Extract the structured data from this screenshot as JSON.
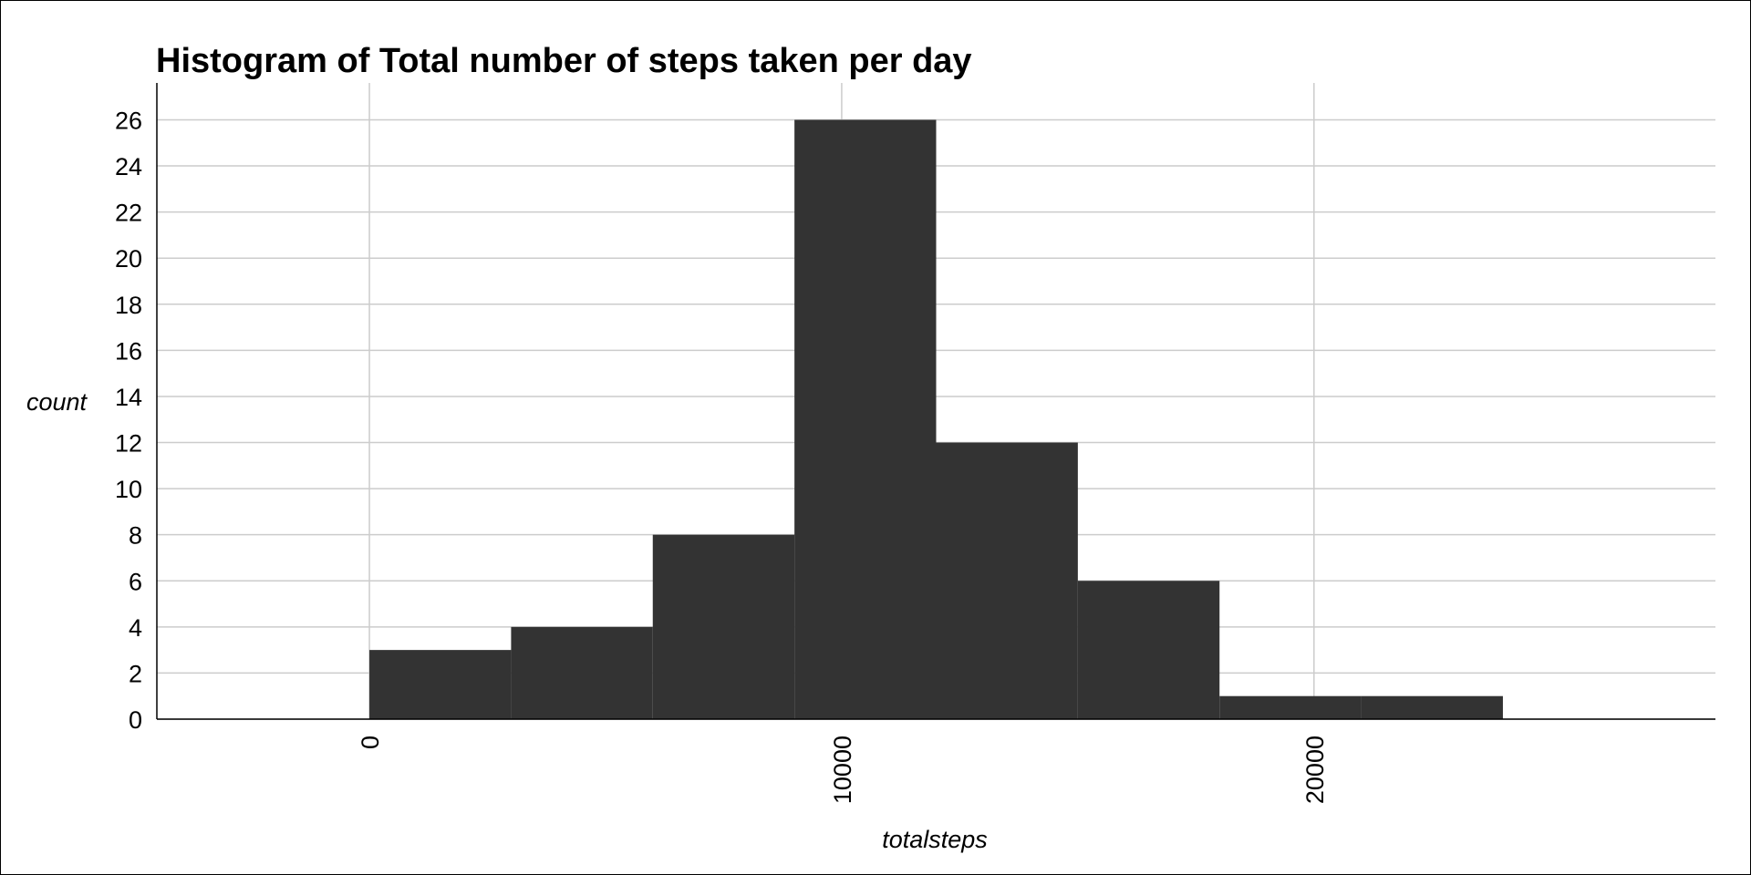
{
  "chart_data": {
    "type": "bar",
    "title": "Histogram of Total number of steps taken per day",
    "xlabel": "totalsteps",
    "ylabel": "count",
    "bin_width": 3000,
    "bins": [
      {
        "x0": 0,
        "x1": 3000,
        "count": 3
      },
      {
        "x0": 3000,
        "x1": 6000,
        "count": 4
      },
      {
        "x0": 6000,
        "x1": 9000,
        "count": 8
      },
      {
        "x0": 9000,
        "x1": 12000,
        "count": 26
      },
      {
        "x0": 12000,
        "x1": 15000,
        "count": 12
      },
      {
        "x0": 15000,
        "x1": 18000,
        "count": 6
      },
      {
        "x0": 18000,
        "x1": 21000,
        "count": 1
      },
      {
        "x0": 21000,
        "x1": 24000,
        "count": 1
      }
    ],
    "xlim": [
      -4500,
      28500
    ],
    "ylim": [
      0,
      27.6
    ],
    "x_ticks": [
      0,
      10000,
      20000
    ],
    "x_tick_labels": [
      "0",
      "10000",
      "20000"
    ],
    "y_ticks": [
      0,
      2,
      4,
      6,
      8,
      10,
      12,
      14,
      16,
      18,
      20,
      22,
      24,
      26
    ],
    "y_tick_labels": [
      "0",
      "2",
      "4",
      "6",
      "8",
      "10",
      "12",
      "14",
      "16",
      "18",
      "20",
      "22",
      "24",
      "26"
    ],
    "grid": true,
    "bar_color": "#333333",
    "grid_color": "#cccccc",
    "axis_color": "#000000"
  }
}
